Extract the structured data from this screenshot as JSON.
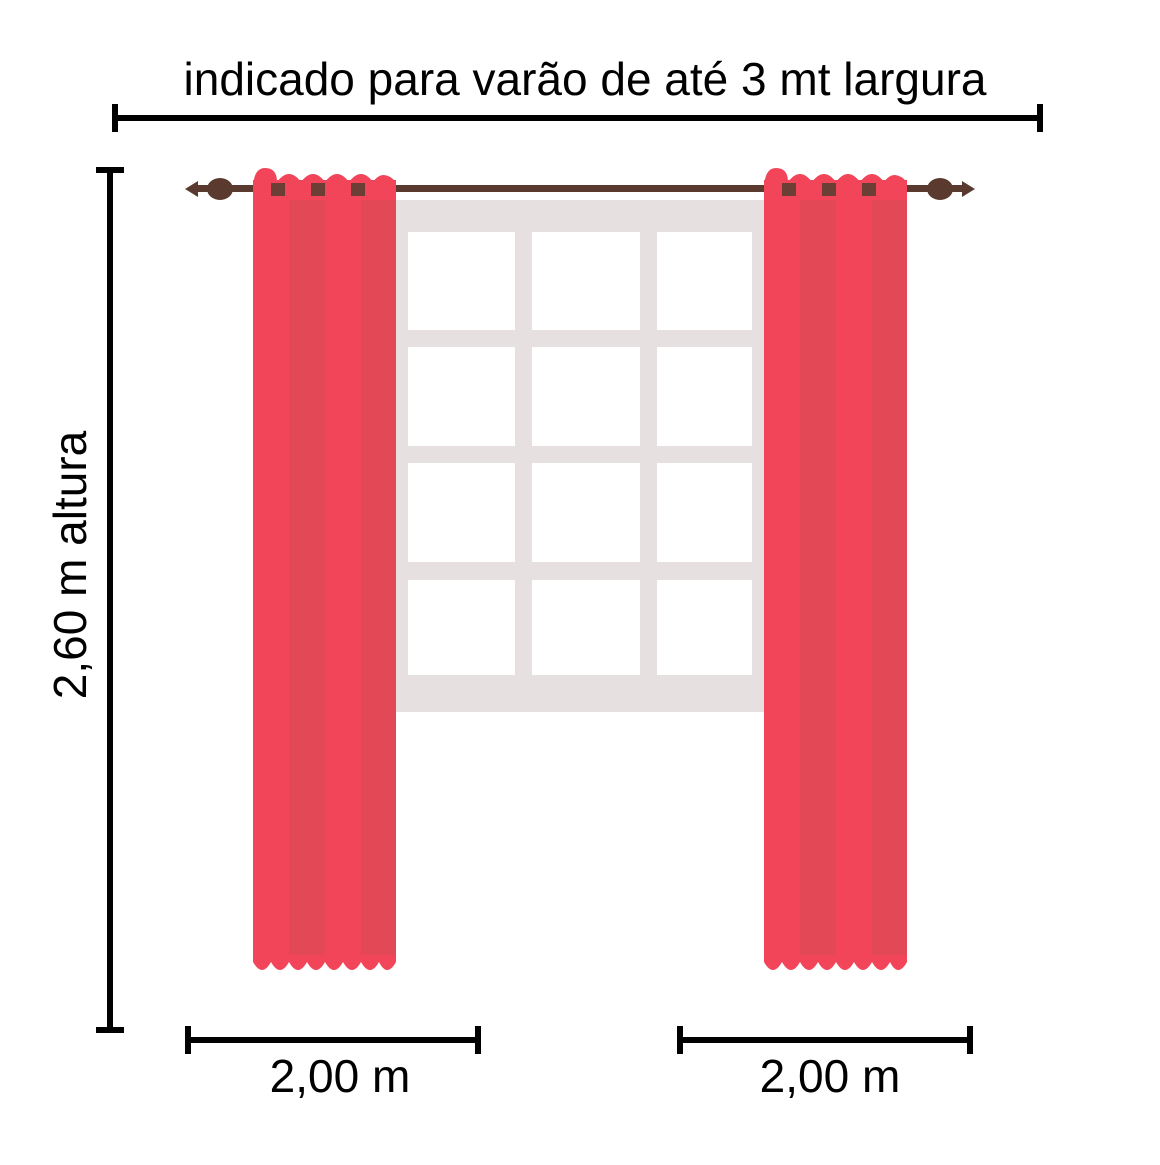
{
  "dimensions": {
    "width_label": "indicado para varão de até 3 mt largura",
    "height_label": "2,60 m altura",
    "panels": [
      {
        "width_label": "2,00 m"
      },
      {
        "width_label": "2,00 m"
      }
    ]
  }
}
